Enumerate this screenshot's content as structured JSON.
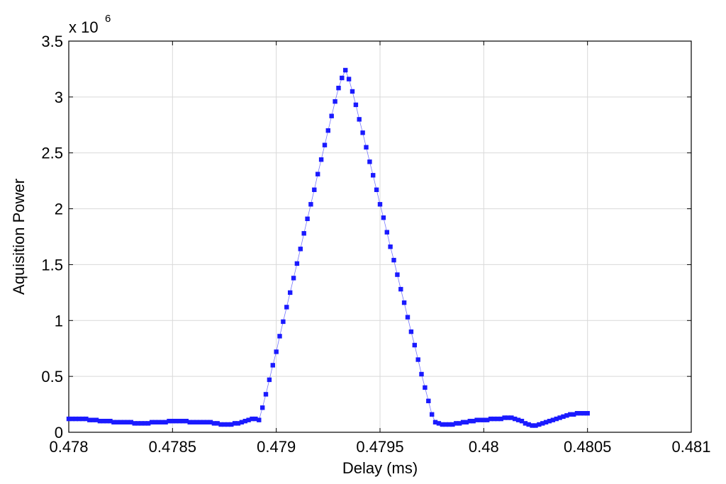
{
  "chart_data": {
    "type": "line",
    "title": "",
    "xlabel": "Delay (ms)",
    "ylabel": "Aquisition Power",
    "y_multiplier": "x 10",
    "y_multiplier_exponent": "6",
    "xlim": [
      0.478,
      0.481
    ],
    "ylim": [
      0,
      3.5
    ],
    "x_ticks": [
      "0.478",
      "0.4785",
      "0.479",
      "0.4795",
      "0.48",
      "0.4805",
      "0.481"
    ],
    "x_tick_values": [
      0.478,
      0.4785,
      0.479,
      0.4795,
      0.48,
      0.4805,
      0.481
    ],
    "y_ticks": [
      "0",
      "0.5",
      "1",
      "1.5",
      "2",
      "2.5",
      "3",
      "3.5"
    ],
    "y_tick_values": [
      0,
      0.5,
      1,
      1.5,
      2,
      2.5,
      3,
      3.5
    ],
    "grid": true,
    "marker": "square",
    "series": [
      {
        "color": "#1a1aff",
        "x_start": 0.478,
        "x_step": 1.66667e-05,
        "values": [
          0.12,
          0.12,
          0.12,
          0.12,
          0.12,
          0.12,
          0.11,
          0.11,
          0.11,
          0.1,
          0.1,
          0.1,
          0.1,
          0.09,
          0.09,
          0.09,
          0.09,
          0.09,
          0.09,
          0.08,
          0.08,
          0.08,
          0.08,
          0.08,
          0.09,
          0.09,
          0.09,
          0.09,
          0.09,
          0.1,
          0.1,
          0.1,
          0.1,
          0.1,
          0.1,
          0.09,
          0.09,
          0.09,
          0.09,
          0.09,
          0.09,
          0.09,
          0.08,
          0.08,
          0.07,
          0.07,
          0.07,
          0.07,
          0.08,
          0.08,
          0.09,
          0.1,
          0.11,
          0.12,
          0.12,
          0.11,
          0.22,
          0.34,
          0.47,
          0.6,
          0.72,
          0.86,
          0.99,
          1.12,
          1.25,
          1.38,
          1.51,
          1.64,
          1.78,
          1.91,
          2.04,
          2.17,
          2.31,
          2.44,
          2.57,
          2.7,
          2.83,
          2.96,
          3.08,
          3.17,
          3.24,
          3.16,
          3.05,
          2.93,
          2.8,
          2.68,
          2.55,
          2.42,
          2.3,
          2.17,
          2.04,
          1.92,
          1.79,
          1.66,
          1.54,
          1.41,
          1.28,
          1.16,
          1.03,
          0.9,
          0.78,
          0.65,
          0.52,
          0.4,
          0.28,
          0.16,
          0.09,
          0.08,
          0.07,
          0.07,
          0.07,
          0.07,
          0.08,
          0.08,
          0.09,
          0.09,
          0.1,
          0.1,
          0.11,
          0.11,
          0.11,
          0.11,
          0.12,
          0.12,
          0.12,
          0.12,
          0.13,
          0.13,
          0.13,
          0.12,
          0.11,
          0.1,
          0.08,
          0.07,
          0.06,
          0.06,
          0.07,
          0.08,
          0.09,
          0.1,
          0.11,
          0.12,
          0.13,
          0.14,
          0.15,
          0.16,
          0.16,
          0.17,
          0.17,
          0.17,
          0.17
        ]
      }
    ]
  }
}
